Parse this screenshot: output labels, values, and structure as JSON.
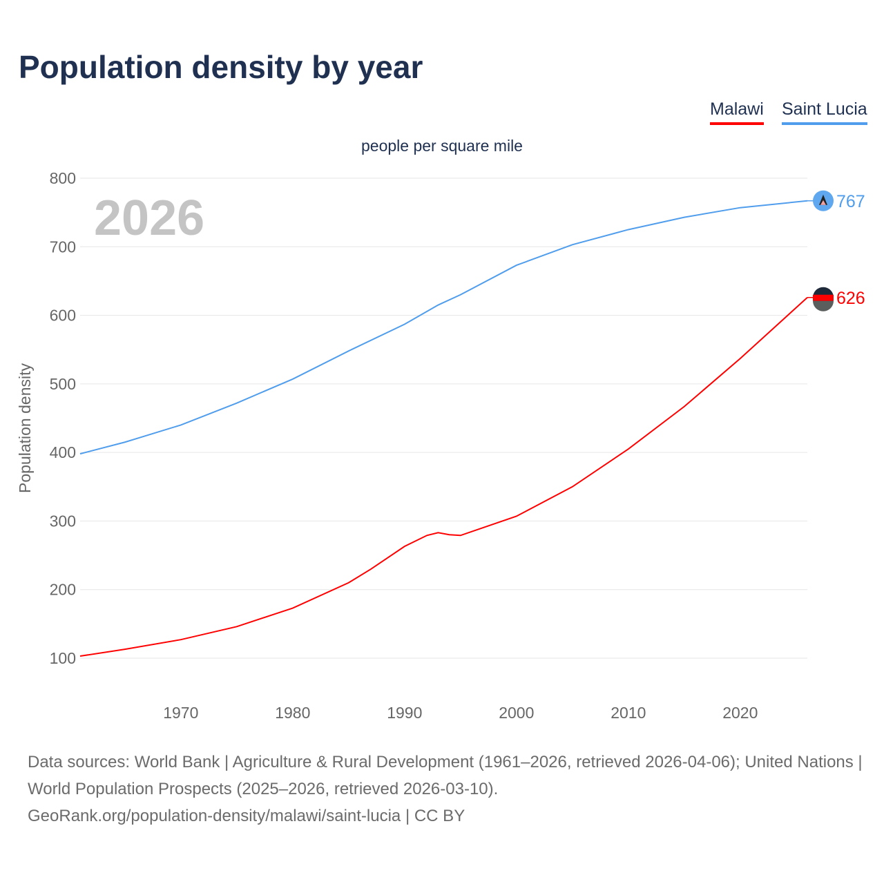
{
  "title": "Population density by year",
  "footer": {
    "line1": "Data sources: World Bank | Agriculture & Rural Development (1961–2026, retrieved 2026-04-06); United Nations | World Population Prospects (2025–2026, retrieved 2026-03-10).",
    "line2": "GeoRank.org/population-density/malawi/saint-lucia | CC BY"
  },
  "chart_data": {
    "type": "line",
    "subtitle": "people per square mile",
    "ylabel": "Population density",
    "xlabel": "",
    "year_watermark": "2026",
    "xlim": [
      1961,
      2026
    ],
    "ylim": [
      100,
      800
    ],
    "x_ticks": [
      1970,
      1980,
      1990,
      2000,
      2010,
      2020
    ],
    "y_ticks": [
      100,
      200,
      300,
      400,
      500,
      600,
      700,
      800
    ],
    "grid": true,
    "legend_position": "top-right",
    "series": [
      {
        "name": "Malawi",
        "color": "#ff0000",
        "end_label": "626",
        "flag": "malawi-flag",
        "x": [
          1961,
          1965,
          1970,
          1975,
          1980,
          1985,
          1987,
          1990,
          1992,
          1993,
          1994,
          1995,
          2000,
          2005,
          2010,
          2015,
          2020,
          2026
        ],
        "y": [
          103,
          113,
          127,
          146,
          173,
          210,
          230,
          263,
          279,
          283,
          280,
          279,
          307,
          350,
          405,
          467,
          537,
          626
        ]
      },
      {
        "name": "Saint Lucia",
        "color": "#4f9dec",
        "end_label": "767",
        "flag": "saint-lucia-flag",
        "x": [
          1961,
          1965,
          1970,
          1975,
          1980,
          1985,
          1990,
          1993,
          1995,
          2000,
          2005,
          2010,
          2015,
          2020,
          2026
        ],
        "y": [
          398,
          415,
          440,
          472,
          507,
          548,
          587,
          615,
          630,
          673,
          703,
          725,
          743,
          757,
          767
        ]
      }
    ]
  }
}
